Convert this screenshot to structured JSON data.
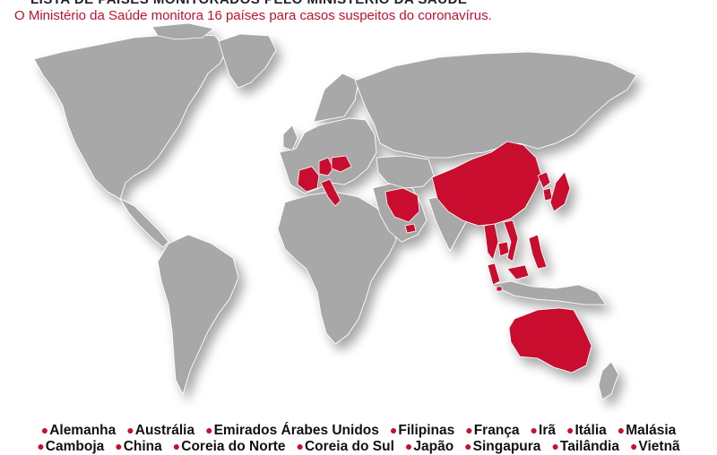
{
  "header": {
    "title": "LISTA DE PAÍSES MONITORADOS PELO MINISTÉRIO DA SAÚDE",
    "subtitle": "O Ministério da Saúde monitora 16 países para casos suspeitos do coronavírus."
  },
  "colors": {
    "highlight": "#c8102e",
    "land": "#a8a8a8",
    "border": "#ffffff"
  },
  "legend": {
    "row1": [
      "Alemanha",
      "Austrália",
      "Emirados Árabes Unidos",
      "Filipinas",
      "França",
      "Irã",
      "Itália",
      "Malásia"
    ],
    "row2": [
      "Camboja",
      "China",
      "Coreia do Norte",
      "Coreia do Sul",
      "Japão",
      "Singapura",
      "Tailândia",
      "Vietnã"
    ]
  }
}
